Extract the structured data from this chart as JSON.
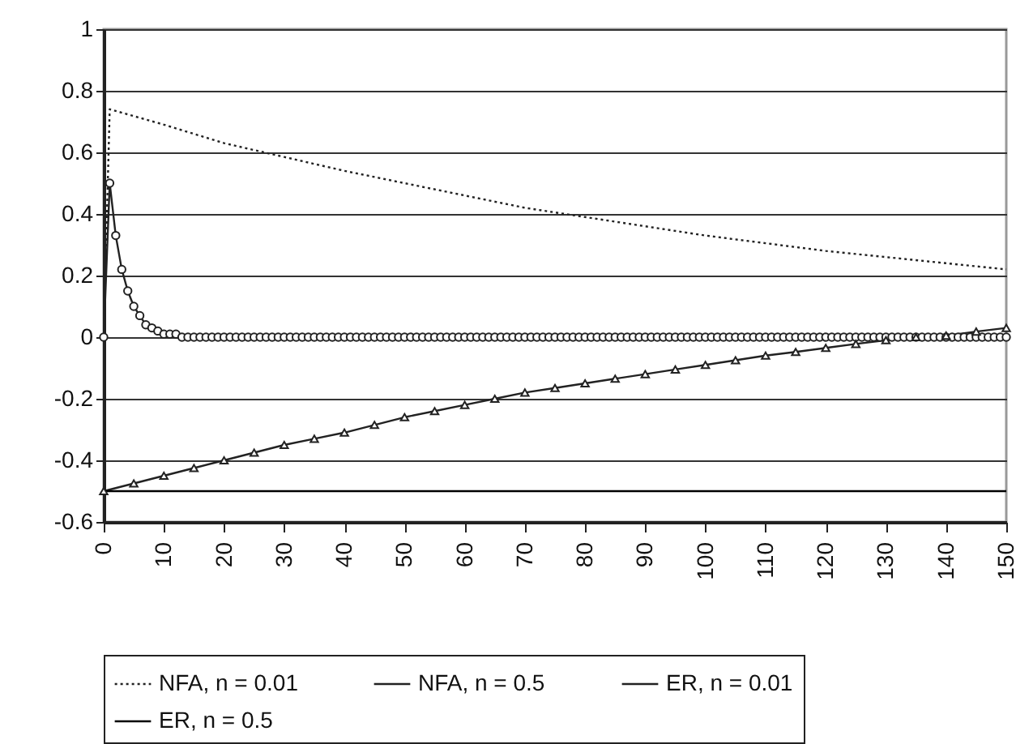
{
  "chart_data": {
    "type": "line",
    "xlim": [
      0,
      150
    ],
    "xticks": [
      0,
      10,
      20,
      30,
      40,
      50,
      60,
      70,
      80,
      90,
      100,
      110,
      120,
      130,
      140,
      150
    ],
    "ylim": [
      -0.6,
      1
    ],
    "yticks": [
      -0.6,
      -0.4,
      -0.2,
      0,
      0.2,
      0.4,
      0.6,
      0.8,
      1
    ],
    "grid": "y",
    "legend": "bottom",
    "series": [
      {
        "name": "NFA, n = 0.01",
        "color": "#222222",
        "line_style": "dotted",
        "marker": "none",
        "x": [
          0,
          1,
          10,
          20,
          30,
          40,
          50,
          60,
          70,
          80,
          90,
          100,
          110,
          120,
          130,
          140,
          150
        ],
        "values": [
          0,
          0.74,
          0.69,
          0.63,
          0.585,
          0.54,
          0.5,
          0.46,
          0.42,
          0.39,
          0.36,
          0.33,
          0.305,
          0.28,
          0.26,
          0.24,
          0.22
        ]
      },
      {
        "name": "NFA, n = 0.5",
        "color": "#222222",
        "line_style": "solid",
        "marker": "circle",
        "x": [
          0,
          1,
          2,
          3,
          4,
          5,
          6,
          7,
          8,
          9,
          10,
          11,
          12,
          13,
          14,
          15,
          16,
          17,
          18,
          19,
          20,
          21,
          22,
          23,
          24,
          25,
          26,
          27,
          28,
          29,
          30,
          31,
          32,
          33,
          34,
          35,
          36,
          37,
          38,
          39,
          40,
          41,
          42,
          43,
          44,
          45,
          46,
          47,
          48,
          49,
          50,
          51,
          52,
          53,
          54,
          55,
          56,
          57,
          58,
          59,
          60,
          61,
          62,
          63,
          64,
          65,
          66,
          67,
          68,
          69,
          70,
          71,
          72,
          73,
          74,
          75,
          76,
          77,
          78,
          79,
          80,
          81,
          82,
          83,
          84,
          85,
          86,
          87,
          88,
          89,
          90,
          91,
          92,
          93,
          94,
          95,
          96,
          97,
          98,
          99,
          100,
          101,
          102,
          103,
          104,
          105,
          106,
          107,
          108,
          109,
          110,
          111,
          112,
          113,
          114,
          115,
          116,
          117,
          118,
          119,
          120,
          121,
          122,
          123,
          124,
          125,
          126,
          127,
          128,
          129,
          130,
          131,
          132,
          133,
          134,
          135,
          136,
          137,
          138,
          139,
          140,
          141,
          142,
          143,
          144,
          145,
          146,
          147,
          148,
          149,
          150
        ],
        "values": [
          0,
          0.5,
          0.33,
          0.22,
          0.15,
          0.1,
          0.07,
          0.04,
          0.03,
          0.02,
          0.01,
          0.01,
          0.01,
          0,
          0,
          0,
          0,
          0,
          0,
          0,
          0,
          0,
          0,
          0,
          0,
          0,
          0,
          0,
          0,
          0,
          0,
          0,
          0,
          0,
          0,
          0,
          0,
          0,
          0,
          0,
          0,
          0,
          0,
          0,
          0,
          0,
          0,
          0,
          0,
          0,
          0,
          0,
          0,
          0,
          0,
          0,
          0,
          0,
          0,
          0,
          0,
          0,
          0,
          0,
          0,
          0,
          0,
          0,
          0,
          0,
          0,
          0,
          0,
          0,
          0,
          0,
          0,
          0,
          0,
          0,
          0,
          0,
          0,
          0,
          0,
          0,
          0,
          0,
          0,
          0,
          0,
          0,
          0,
          0,
          0,
          0,
          0,
          0,
          0,
          0,
          0,
          0,
          0,
          0,
          0,
          0,
          0,
          0,
          0,
          0,
          0,
          0,
          0,
          0,
          0,
          0,
          0,
          0,
          0,
          0,
          0,
          0,
          0,
          0,
          0,
          0,
          0,
          0,
          0,
          0,
          0,
          0,
          0,
          0,
          0,
          0,
          0,
          0,
          0,
          0,
          0,
          0,
          0,
          0,
          0,
          0,
          0,
          0,
          0,
          0,
          0
        ]
      },
      {
        "name": "ER, n = 0.01",
        "color": "#222222",
        "line_style": "solid",
        "marker": "triangle",
        "x": [
          0,
          5,
          10,
          15,
          20,
          25,
          30,
          35,
          40,
          45,
          50,
          55,
          60,
          65,
          70,
          75,
          80,
          85,
          90,
          95,
          100,
          105,
          110,
          115,
          120,
          125,
          130,
          135,
          140,
          145,
          150
        ],
        "values": [
          -0.5,
          -0.475,
          -0.45,
          -0.425,
          -0.4,
          -0.375,
          -0.35,
          -0.33,
          -0.31,
          -0.285,
          -0.26,
          -0.24,
          -0.22,
          -0.2,
          -0.18,
          -0.165,
          -0.15,
          -0.135,
          -0.12,
          -0.105,
          -0.09,
          -0.075,
          -0.06,
          -0.048,
          -0.035,
          -0.022,
          -0.01,
          0,
          0.005,
          0.018,
          0.03
        ]
      },
      {
        "name": "ER, n = 0.5",
        "color": "#000000",
        "line_style": "solid",
        "marker": "none",
        "x": [
          0,
          150
        ],
        "values": [
          -0.5,
          -0.5
        ]
      }
    ]
  }
}
